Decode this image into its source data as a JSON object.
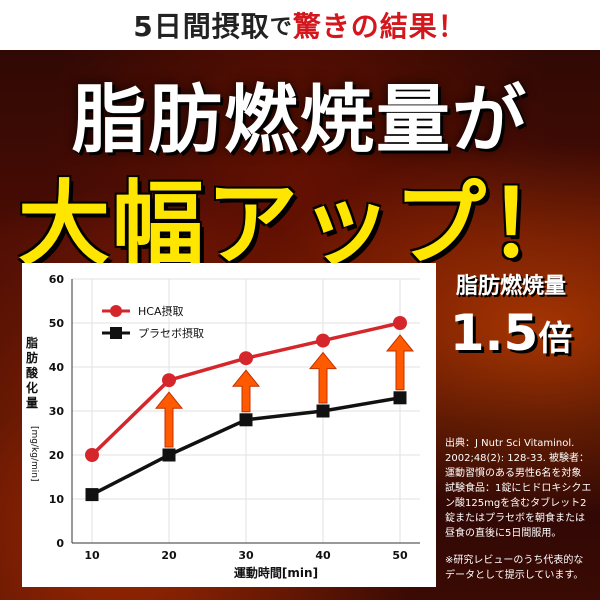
{
  "header": {
    "part1": "5日間摂取",
    "part2": "で",
    "part3": "驚きの結果！"
  },
  "headline": {
    "line1": "脂肪燃焼量が",
    "line2": "大幅アップ！"
  },
  "badge": {
    "label": "脂肪燃焼量",
    "value": "1.5",
    "unit": "倍"
  },
  "source_text": "出典：J Nutr Sci Vitaminol. 2002;48(2): 128-33. 被験者：運動習慣のある男性6名を対象 試験食品：1錠にヒドロキシクエン酸125mgを含むタブレット2錠またはプラセボを朝食または昼食の直後に5日間服用。",
  "note_text": "※研究レビューのうち代表的なデータとして提示しています。",
  "colors": {
    "hca": "#d4262b",
    "placebo": "#111111",
    "arrow": "#ff5a00",
    "headline2": "#ffe600"
  },
  "chart_data": {
    "type": "line",
    "x": [
      10,
      20,
      30,
      40,
      50
    ],
    "xlabel": "運動時間[min]",
    "ylabel": "脂肪酸化量",
    "ylabel_unit": "[mg/kg/min]",
    "xlim": [
      10,
      50
    ],
    "ylim": [
      0,
      60
    ],
    "yticks": [
      0,
      10,
      20,
      30,
      40,
      50,
      60
    ],
    "legend_position": "top-left",
    "series": [
      {
        "name": "HCA摂取",
        "values": [
          20,
          37,
          42,
          46,
          50
        ],
        "marker": "circle",
        "color": "#d4262b"
      },
      {
        "name": "プラセボ摂取",
        "values": [
          11,
          20,
          28,
          30,
          33
        ],
        "marker": "square",
        "color": "#111111"
      }
    ],
    "arrows_at": [
      20,
      30,
      40,
      50
    ]
  }
}
